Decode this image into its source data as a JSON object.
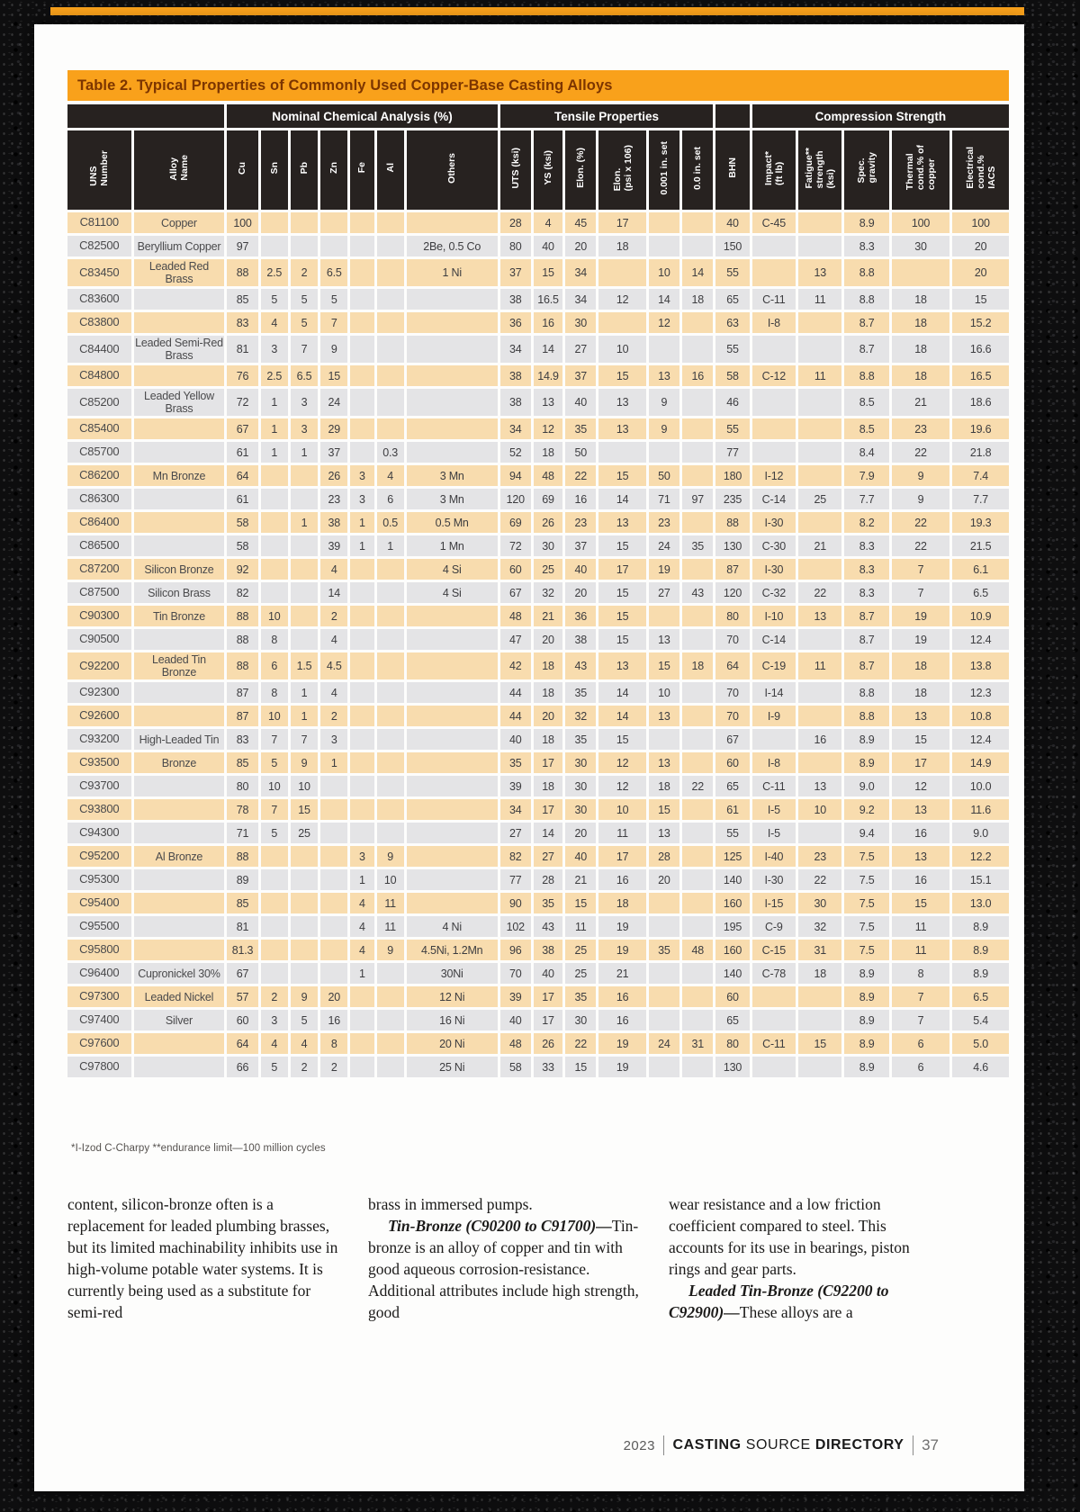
{
  "colors": {
    "accent_orange": "#F9A11B",
    "title_text": "#7c3500",
    "header_black": "#272220",
    "row_tan": "#F8DCAE",
    "row_gray": "#E4E4E6"
  },
  "table": {
    "title": "Table 2. Typical Properties of Commonly Used Copper-Base Casting Alloys",
    "groups": [
      {
        "label": "",
        "span": 2
      },
      {
        "label": "Nominal Chemical Analysis (%)",
        "span": 7
      },
      {
        "label": "Tensile Properties",
        "span": 6
      },
      {
        "label": "",
        "span": 1
      },
      {
        "label": "Compression Strength",
        "span": 5
      }
    ],
    "columns": [
      "UNS\nNumber",
      "Alloy\nName",
      "Cu",
      "Sn",
      "Pb",
      "Zn",
      "Fe",
      "Al",
      "Others",
      "UTS (ksi)",
      "YS (ksi)",
      "Elon. (%)",
      "Elon.\n(psi x 106)",
      "0.001 in. set",
      "0.0 in. set",
      "BHN",
      "Impact*\n(ft lb)",
      "Fatigue**\nstrength\n(ksi)",
      "Spec.\ngravity",
      "Thermal\ncond.% of\ncopper",
      "Electrical\ncond.%\nIACS"
    ],
    "rows": [
      [
        "C81100",
        "Copper",
        "100",
        "",
        "",
        "",
        "",
        "",
        "",
        "28",
        "4",
        "45",
        "17",
        "",
        "",
        "40",
        "C-45",
        "",
        "8.9",
        "100",
        "100"
      ],
      [
        "C82500",
        "Beryllium Copper",
        "97",
        "",
        "",
        "",
        "",
        "",
        "2Be, 0.5 Co",
        "80",
        "40",
        "20",
        "18",
        "",
        "",
        "150",
        "",
        "",
        "8.3",
        "30",
        "20"
      ],
      [
        "C83450",
        "Leaded Red Brass",
        "88",
        "2.5",
        "2",
        "6.5",
        "",
        "",
        "1 Ni",
        "37",
        "15",
        "34",
        "",
        "10",
        "14",
        "55",
        "",
        "13",
        "8.8",
        "",
        "20"
      ],
      [
        "C83600",
        "",
        "85",
        "5",
        "5",
        "5",
        "",
        "",
        "",
        "38",
        "16.5",
        "34",
        "12",
        "14",
        "18",
        "65",
        "C-11",
        "11",
        "8.8",
        "18",
        "15"
      ],
      [
        "C83800",
        "",
        "83",
        "4",
        "5",
        "7",
        "",
        "",
        "",
        "36",
        "16",
        "30",
        "",
        "12",
        "",
        "63",
        "I-8",
        "",
        "8.7",
        "18",
        "15.2"
      ],
      [
        "C84400",
        "Leaded Semi-Red Brass",
        "81",
        "3",
        "7",
        "9",
        "",
        "",
        "",
        "34",
        "14",
        "27",
        "10",
        "",
        "",
        "55",
        "",
        "",
        "8.7",
        "18",
        "16.6"
      ],
      [
        "C84800",
        "",
        "76",
        "2.5",
        "6.5",
        "15",
        "",
        "",
        "",
        "38",
        "14.9",
        "37",
        "15",
        "13",
        "16",
        "58",
        "C-12",
        "11",
        "8.8",
        "18",
        "16.5"
      ],
      [
        "C85200",
        "Leaded Yellow Brass",
        "72",
        "1",
        "3",
        "24",
        "",
        "",
        "",
        "38",
        "13",
        "40",
        "13",
        "9",
        "",
        "46",
        "",
        "",
        "8.5",
        "21",
        "18.6"
      ],
      [
        "C85400",
        "",
        "67",
        "1",
        "3",
        "29",
        "",
        "",
        "",
        "34",
        "12",
        "35",
        "13",
        "9",
        "",
        "55",
        "",
        "",
        "8.5",
        "23",
        "19.6"
      ],
      [
        "C85700",
        "",
        "61",
        "1",
        "1",
        "37",
        "",
        "0.3",
        "",
        "52",
        "18",
        "50",
        "",
        "",
        "",
        "77",
        "",
        "",
        "8.4",
        "22",
        "21.8"
      ],
      [
        "C86200",
        "Mn Bronze",
        "64",
        "",
        "",
        "26",
        "3",
        "4",
        "3 Mn",
        "94",
        "48",
        "22",
        "15",
        "50",
        "",
        "180",
        "I-12",
        "",
        "7.9",
        "9",
        "7.4"
      ],
      [
        "C86300",
        "",
        "61",
        "",
        "",
        "23",
        "3",
        "6",
        "3 Mn",
        "120",
        "69",
        "16",
        "14",
        "71",
        "97",
        "235",
        "C-14",
        "25",
        "7.7",
        "9",
        "7.7"
      ],
      [
        "C86400",
        "",
        "58",
        "",
        "1",
        "38",
        "1",
        "0.5",
        "0.5 Mn",
        "69",
        "26",
        "23",
        "13",
        "23",
        "",
        "88",
        "I-30",
        "",
        "8.2",
        "22",
        "19.3"
      ],
      [
        "C86500",
        "",
        "58",
        "",
        "",
        "39",
        "1",
        "1",
        "1 Mn",
        "72",
        "30",
        "37",
        "15",
        "24",
        "35",
        "130",
        "C-30",
        "21",
        "8.3",
        "22",
        "21.5"
      ],
      [
        "C87200",
        "Silicon Bronze",
        "92",
        "",
        "",
        "4",
        "",
        "",
        "4 Si",
        "60",
        "25",
        "40",
        "17",
        "19",
        "",
        "87",
        "I-30",
        "",
        "8.3",
        "7",
        "6.1"
      ],
      [
        "C87500",
        "Silicon Brass",
        "82",
        "",
        "",
        "14",
        "",
        "",
        "4 Si",
        "67",
        "32",
        "20",
        "15",
        "27",
        "43",
        "120",
        "C-32",
        "22",
        "8.3",
        "7",
        "6.5"
      ],
      [
        "C90300",
        "Tin Bronze",
        "88",
        "10",
        "",
        "2",
        "",
        "",
        "",
        "48",
        "21",
        "36",
        "15",
        "",
        "",
        "80",
        "I-10",
        "13",
        "8.7",
        "19",
        "10.9"
      ],
      [
        "C90500",
        "",
        "88",
        "8",
        "",
        "4",
        "",
        "",
        "",
        "47",
        "20",
        "38",
        "15",
        "13",
        "",
        "70",
        "C-14",
        "",
        "8.7",
        "19",
        "12.4"
      ],
      [
        "C92200",
        "Leaded Tin Bronze",
        "88",
        "6",
        "1.5",
        "4.5",
        "",
        "",
        "",
        "42",
        "18",
        "43",
        "13",
        "15",
        "18",
        "64",
        "C-19",
        "11",
        "8.7",
        "18",
        "13.8"
      ],
      [
        "C92300",
        "",
        "87",
        "8",
        "1",
        "4",
        "",
        "",
        "",
        "44",
        "18",
        "35",
        "14",
        "10",
        "",
        "70",
        "I-14",
        "",
        "8.8",
        "18",
        "12.3"
      ],
      [
        "C92600",
        "",
        "87",
        "10",
        "1",
        "2",
        "",
        "",
        "",
        "44",
        "20",
        "32",
        "14",
        "13",
        "",
        "70",
        "I-9",
        "",
        "8.8",
        "13",
        "10.8"
      ],
      [
        "C93200",
        "High-Leaded Tin",
        "83",
        "7",
        "7",
        "3",
        "",
        "",
        "",
        "40",
        "18",
        "35",
        "15",
        "",
        "",
        "67",
        "",
        "16",
        "8.9",
        "15",
        "12.4"
      ],
      [
        "C93500",
        "Bronze",
        "85",
        "5",
        "9",
        "1",
        "",
        "",
        "",
        "35",
        "17",
        "30",
        "12",
        "13",
        "",
        "60",
        "I-8",
        "",
        "8.9",
        "17",
        "14.9"
      ],
      [
        "C93700",
        "",
        "80",
        "10",
        "10",
        "",
        "",
        "",
        "",
        "39",
        "18",
        "30",
        "12",
        "18",
        "22",
        "65",
        "C-11",
        "13",
        "9.0",
        "12",
        "10.0"
      ],
      [
        "C93800",
        "",
        "78",
        "7",
        "15",
        "",
        "",
        "",
        "",
        "34",
        "17",
        "30",
        "10",
        "15",
        "",
        "61",
        "I-5",
        "10",
        "9.2",
        "13",
        "11.6"
      ],
      [
        "C94300",
        "",
        "71",
        "5",
        "25",
        "",
        "",
        "",
        "",
        "27",
        "14",
        "20",
        "11",
        "13",
        "",
        "55",
        "I-5",
        "",
        "9.4",
        "16",
        "9.0"
      ],
      [
        "C95200",
        "Al Bronze",
        "88",
        "",
        "",
        "",
        "3",
        "9",
        "",
        "82",
        "27",
        "40",
        "17",
        "28",
        "",
        "125",
        "I-40",
        "23",
        "7.5",
        "13",
        "12.2"
      ],
      [
        "C95300",
        "",
        "89",
        "",
        "",
        "",
        "1",
        "10",
        "",
        "77",
        "28",
        "21",
        "16",
        "20",
        "",
        "140",
        "I-30",
        "22",
        "7.5",
        "16",
        "15.1"
      ],
      [
        "C95400",
        "",
        "85",
        "",
        "",
        "",
        "4",
        "11",
        "",
        "90",
        "35",
        "15",
        "18",
        "",
        "",
        "160",
        "I-15",
        "30",
        "7.5",
        "15",
        "13.0"
      ],
      [
        "C95500",
        "",
        "81",
        "",
        "",
        "",
        "4",
        "11",
        "4 Ni",
        "102",
        "43",
        "11",
        "19",
        "",
        "",
        "195",
        "C-9",
        "32",
        "7.5",
        "11",
        "8.9"
      ],
      [
        "C95800",
        "",
        "81.3",
        "",
        "",
        "",
        "4",
        "9",
        "4.5Ni, 1.2Mn",
        "96",
        "38",
        "25",
        "19",
        "35",
        "48",
        "160",
        "C-15",
        "31",
        "7.5",
        "11",
        "8.9"
      ],
      [
        "C96400",
        "Cupronickel 30%",
        "67",
        "",
        "",
        "",
        "1",
        "",
        "30Ni",
        "70",
        "40",
        "25",
        "21",
        "",
        "",
        "140",
        "C-78",
        "18",
        "8.9",
        "8",
        "8.9"
      ],
      [
        "C97300",
        "Leaded Nickel",
        "57",
        "2",
        "9",
        "20",
        "",
        "",
        "12 Ni",
        "39",
        "17",
        "35",
        "16",
        "",
        "",
        "60",
        "",
        "",
        "8.9",
        "7",
        "6.5"
      ],
      [
        "C97400",
        "Silver",
        "60",
        "3",
        "5",
        "16",
        "",
        "",
        "16 Ni",
        "40",
        "17",
        "30",
        "16",
        "",
        "",
        "65",
        "",
        "",
        "8.9",
        "7",
        "5.4"
      ],
      [
        "C97600",
        "",
        "64",
        "4",
        "4",
        "8",
        "",
        "",
        "20 Ni",
        "48",
        "26",
        "22",
        "19",
        "24",
        "31",
        "80",
        "C-11",
        "15",
        "8.9",
        "6",
        "5.0"
      ],
      [
        "C97800",
        "",
        "66",
        "5",
        "2",
        "2",
        "",
        "",
        "25 Ni",
        "58",
        "33",
        "15",
        "19",
        "",
        "",
        "130",
        "",
        "",
        "8.9",
        "6",
        "4.6"
      ]
    ],
    "footnote": "*I-Izod C-Charpy    **endurance limit—100 million cycles"
  },
  "body_columns": [
    {
      "paragraphs": [
        {
          "lead": "",
          "text": "content, silicon-bronze often is a replacement for leaded plumbing brasses, but its limited machinability inhibits use in high-volume potable water systems. It is currently being used as a substitute for semi-red"
        }
      ]
    },
    {
      "paragraphs": [
        {
          "lead": "",
          "text": "brass in immersed pumps."
        },
        {
          "lead": "Tin-Bronze (C90200 to C91700)—",
          "text": "Tin-bronze is an alloy of copper and tin with good aqueous corrosion-resistance. Additional attributes include high strength, good"
        }
      ]
    },
    {
      "paragraphs": [
        {
          "lead": "",
          "text": "wear resistance and a low friction coefficient compared to steel. This accounts for its use in bearings, piston rings and gear parts."
        },
        {
          "lead": "Leaded Tin-Bronze (C92200 to C92900)—",
          "text": "These alloys are a"
        }
      ]
    }
  ],
  "footer": {
    "year": "2023",
    "brand_bold_1": "CASTING",
    "brand_regular": "SOURCE",
    "brand_bold_2": "DIRECTORY",
    "page_number": "37"
  }
}
